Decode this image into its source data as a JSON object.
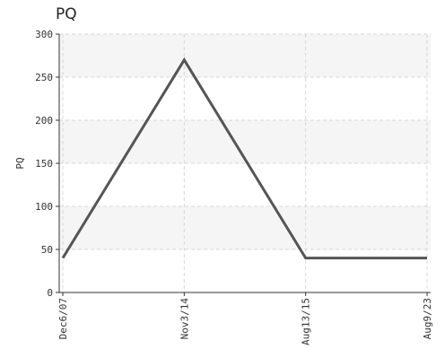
{
  "chart_data": {
    "type": "line",
    "title": "PQ",
    "xlabel": "",
    "ylabel": "PQ",
    "categories": [
      "Dec6/07",
      "Nov3/14",
      "Aug13/15",
      "Aug9/23"
    ],
    "series": [
      {
        "values": [
          40,
          270,
          40,
          40
        ],
        "color": "#555555"
      }
    ],
    "ylim": [
      0,
      300
    ],
    "yticks": [
      0,
      50,
      100,
      150,
      200,
      250,
      300
    ],
    "grid": true,
    "legend": "none"
  },
  "colors": {
    "band": "#f5f5f5",
    "grid": "#d8d8d8",
    "axis": "#333333",
    "line": "#555555"
  }
}
